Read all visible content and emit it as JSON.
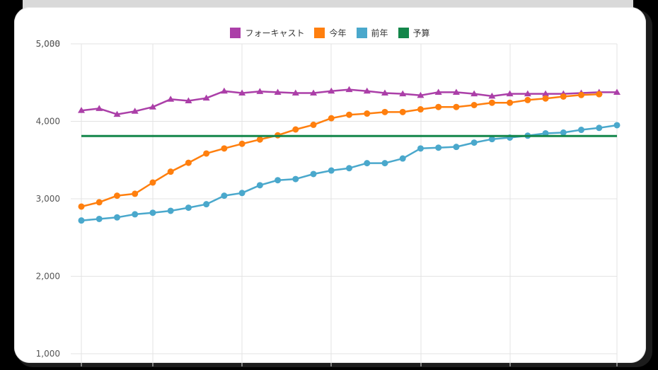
{
  "chart_data": {
    "type": "line",
    "title": "",
    "xlabel": "",
    "ylabel": "",
    "ylim": [
      1000,
      5000
    ],
    "yticks": [
      "1,000",
      "2,000",
      "3,000",
      "4,000",
      "5,000"
    ],
    "top_label_overlap": "5,038",
    "grid": true,
    "legend_position": "top",
    "x": [
      1,
      2,
      3,
      4,
      5,
      6,
      7,
      8,
      9,
      10,
      11,
      12,
      13,
      14,
      15,
      16,
      17,
      18,
      19,
      20,
      21,
      22,
      23,
      24,
      25,
      26,
      27,
      28,
      29,
      30,
      31
    ],
    "series": [
      {
        "name": "フォーキャスト",
        "color": "#ab3fa8",
        "marker": "triangle",
        "values": [
          4140,
          4165,
          4090,
          4130,
          4185,
          4285,
          4265,
          4300,
          4390,
          4365,
          4385,
          4375,
          4365,
          4365,
          4390,
          4410,
          4390,
          4365,
          4355,
          4335,
          4375,
          4375,
          4355,
          4325,
          4355,
          4355,
          4355,
          4355,
          4365,
          4375,
          4375
        ]
      },
      {
        "name": "今年",
        "color": "#ff7f0e",
        "marker": "circle",
        "values": [
          2900,
          2955,
          3040,
          3065,
          3210,
          3350,
          3465,
          3585,
          3650,
          3710,
          3765,
          3820,
          3895,
          3955,
          4040,
          4085,
          4100,
          4120,
          4120,
          4155,
          4185,
          4185,
          4210,
          4240,
          4240,
          4275,
          4295,
          4320,
          4340,
          4350
        ]
      },
      {
        "name": "前年",
        "color": "#4aa8cc",
        "marker": "circle",
        "values": [
          2720,
          2740,
          2760,
          2800,
          2820,
          2845,
          2885,
          2930,
          3040,
          3075,
          3175,
          3240,
          3255,
          3320,
          3365,
          3395,
          3460,
          3460,
          3520,
          3650,
          3660,
          3670,
          3725,
          3770,
          3790,
          3815,
          3845,
          3855,
          3890,
          3915,
          3950
        ]
      },
      {
        "name": "予算",
        "color": "#13864a",
        "marker": "none",
        "values": [
          3810,
          3810,
          3810,
          3810,
          3810,
          3810,
          3810,
          3810,
          3810,
          3810,
          3810,
          3810,
          3810,
          3810,
          3810,
          3810,
          3810,
          3810,
          3810,
          3810,
          3810,
          3810,
          3810,
          3810,
          3810,
          3810,
          3810,
          3810,
          3810,
          3810,
          3810
        ]
      }
    ]
  },
  "legend": [
    {
      "label": "フォーキャスト",
      "color": "#ab3fa8"
    },
    {
      "label": "今年",
      "color": "#ff7f0e"
    },
    {
      "label": "前年",
      "color": "#4aa8cc"
    },
    {
      "label": "予算",
      "color": "#13864a"
    }
  ]
}
